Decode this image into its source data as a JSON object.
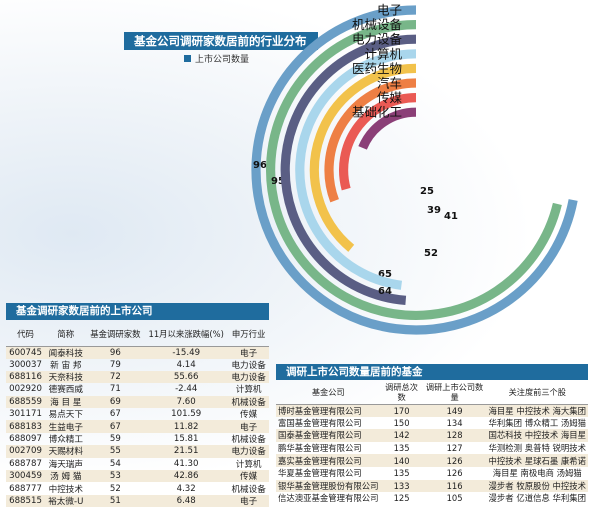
{
  "chart_data": [
    {
      "type": "radial-bar",
      "title": "基金公司调研家数居前的行业分布",
      "legend": {
        "label": "上市公司数量",
        "color": "#1f6c9e",
        "placement": "top"
      },
      "categories": [
        "电子",
        "机械设备",
        "电力设备",
        "计算机",
        "医药生物",
        "汽车",
        "传媒",
        "基础化工"
      ],
      "values": [
        96,
        95,
        65,
        64,
        52,
        41,
        39,
        25
      ],
      "colors": [
        "#6a9fc8",
        "#78b689",
        "#5a5e84",
        "#a9d6ec",
        "#f2c24b",
        "#ee7f44",
        "#ea5a54",
        "#8b3f77"
      ]
    },
    {
      "type": "table",
      "title": "基金调研家数居前的上市公司",
      "columns": [
        "代码",
        "简称",
        "基金调研家数",
        "11月以来涨跌幅(%)",
        "申万行业"
      ],
      "rows": [
        [
          "600745",
          "闻泰科技",
          "96",
          "-15.49",
          "电子"
        ],
        [
          "300037",
          "新 宙 邦",
          "79",
          "4.14",
          "电力设备"
        ],
        [
          "688116",
          "天奈科技",
          "72",
          "55.66",
          "电力设备"
        ],
        [
          "002920",
          "德赛西威",
          "71",
          "-2.44",
          "计算机"
        ],
        [
          "688559",
          "海 目 星",
          "69",
          "7.60",
          "机械设备"
        ],
        [
          "301171",
          "易点天下",
          "67",
          "101.59",
          "传媒"
        ],
        [
          "688183",
          "生益电子",
          "67",
          "11.82",
          "电子"
        ],
        [
          "688097",
          "博众精工",
          "59",
          "15.81",
          "机械设备"
        ],
        [
          "002709",
          "天赐材料",
          "55",
          "21.51",
          "电力设备"
        ],
        [
          "688787",
          "海天瑞声",
          "54",
          "41.30",
          "计算机"
        ],
        [
          "300459",
          "汤 姆 猫",
          "53",
          "42.86",
          "传媒"
        ],
        [
          "688777",
          "中控技术",
          "52",
          "4.32",
          "机械设备"
        ],
        [
          "688515",
          "裕太微-U",
          "51",
          "6.48",
          "电子"
        ]
      ]
    },
    {
      "type": "table",
      "title": "调研上市公司数量居前的基金",
      "columns": [
        "基金公司",
        "调研总次数",
        "调研上市公司数量",
        "关注度前三个股"
      ],
      "rows": [
        [
          "博时基金管理有限公司",
          "170",
          "149",
          "海目星 中控技术 海大集团"
        ],
        [
          "富国基金管理有限公司",
          "150",
          "134",
          "华利集团 博众精工 汤姆猫"
        ],
        [
          "国泰基金管理有限公司",
          "142",
          "128",
          "国芯科技 中控技术 海目星"
        ],
        [
          "鹏华基金管理有限公司",
          "135",
          "127",
          "华测检测 奥普特 锐明技术"
        ],
        [
          "嘉实基金管理有限公司",
          "140",
          "126",
          "中控技术 星球石墨 康希诺"
        ],
        [
          "华夏基金管理有限公司",
          "135",
          "126",
          "海目星 南极电商 汤姆猫"
        ],
        [
          "银华基金管理股份有限公司",
          "133",
          "116",
          "漫步者 牧原股份 中控技术"
        ],
        [
          "信达澳亚基金管理有限公司",
          "125",
          "105",
          "漫步者 亿道信息 华利集团"
        ]
      ]
    }
  ]
}
